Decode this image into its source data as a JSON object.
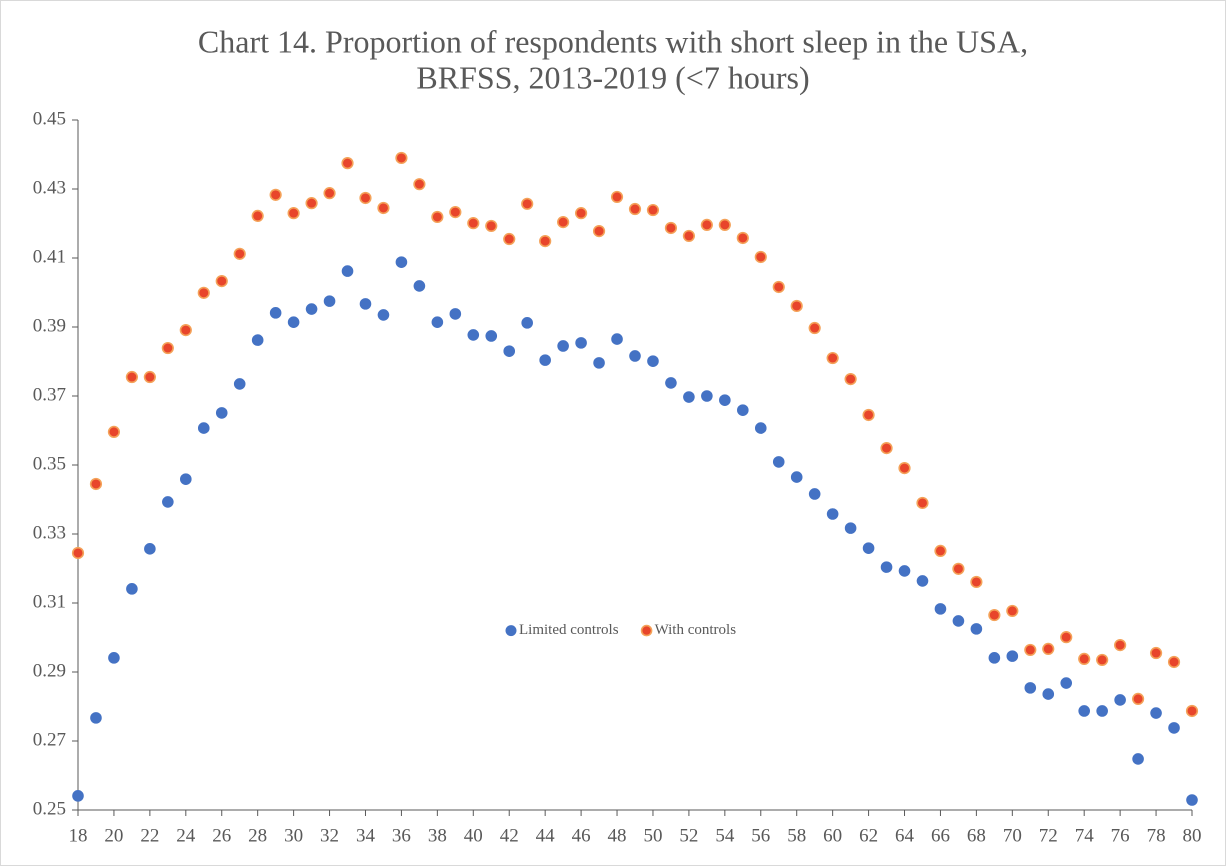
{
  "chart_data": {
    "type": "scatter",
    "title": [
      "Chart 14.  Proportion of respondents with short sleep in the USA,",
      "BRFSS, 2013-2019 (<7 hours)"
    ],
    "x": [
      18,
      19,
      20,
      21,
      22,
      23,
      24,
      25,
      26,
      27,
      28,
      29,
      30,
      31,
      32,
      33,
      34,
      35,
      36,
      37,
      38,
      39,
      40,
      41,
      42,
      43,
      44,
      45,
      46,
      47,
      48,
      49,
      50,
      51,
      52,
      53,
      54,
      55,
      56,
      57,
      58,
      59,
      60,
      61,
      62,
      63,
      64,
      65,
      66,
      67,
      68,
      69,
      70,
      71,
      72,
      73,
      74,
      75,
      76,
      77,
      78,
      79,
      80
    ],
    "series": [
      {
        "name": "Limited controls",
        "color": "#4472c4",
        "values": [
          0.2541,
          0.2767,
          0.2941,
          0.3141,
          0.3257,
          0.3393,
          0.3459,
          0.3607,
          0.3651,
          0.3735,
          0.3862,
          0.3941,
          0.3914,
          0.3952,
          0.3975,
          0.4062,
          0.3967,
          0.3935,
          0.4088,
          0.4019,
          0.3914,
          0.3938,
          0.3877,
          0.3874,
          0.383,
          0.3912,
          0.3804,
          0.3845,
          0.3854,
          0.3796,
          0.3865,
          0.3816,
          0.3801,
          0.3738,
          0.3697,
          0.37,
          0.3688,
          0.3659,
          0.3607,
          0.3509,
          0.3465,
          0.3416,
          0.3358,
          0.3317,
          0.3259,
          0.3204,
          0.3193,
          0.3164,
          0.3083,
          0.3048,
          0.3025,
          0.2941,
          0.2946,
          0.2854,
          0.2836,
          0.2868,
          0.2787,
          0.2787,
          0.2819,
          0.2648,
          0.2781,
          0.2738,
          0.2529
        ]
      },
      {
        "name": "With controls",
        "color": "#e8452b",
        "values": [
          0.3245,
          0.3445,
          0.3596,
          0.3755,
          0.3755,
          0.3839,
          0.3891,
          0.3999,
          0.4033,
          0.4112,
          0.4222,
          0.4283,
          0.423,
          0.4259,
          0.4288,
          0.4375,
          0.4274,
          0.4245,
          0.439,
          0.4314,
          0.4219,
          0.4233,
          0.4201,
          0.4193,
          0.4155,
          0.4257,
          0.4149,
          0.4204,
          0.423,
          0.4178,
          0.4277,
          0.4242,
          0.4239,
          0.4187,
          0.4164,
          0.4196,
          0.4196,
          0.4158,
          0.4103,
          0.4016,
          0.3961,
          0.3897,
          0.381,
          0.3749,
          0.3645,
          0.3549,
          0.3491,
          0.339,
          0.3251,
          0.3199,
          0.3161,
          0.3065,
          0.3077,
          0.2964,
          0.2967,
          0.3001,
          0.2938,
          0.2935,
          0.2978,
          0.2822,
          0.2955,
          0.2929,
          0.2787
        ]
      }
    ],
    "xlim": [
      18,
      80
    ],
    "xticks": [
      18,
      20,
      22,
      24,
      26,
      28,
      30,
      32,
      34,
      36,
      38,
      40,
      42,
      44,
      46,
      48,
      50,
      52,
      54,
      56,
      58,
      60,
      62,
      64,
      66,
      68,
      70,
      72,
      74,
      76,
      78,
      80
    ],
    "ylim": [
      0.25,
      0.45
    ],
    "yticks": [
      0.25,
      0.27,
      0.29,
      0.31,
      0.33,
      0.35,
      0.37,
      0.39,
      0.41,
      0.43,
      0.45
    ],
    "grid": false,
    "legend": "center"
  }
}
